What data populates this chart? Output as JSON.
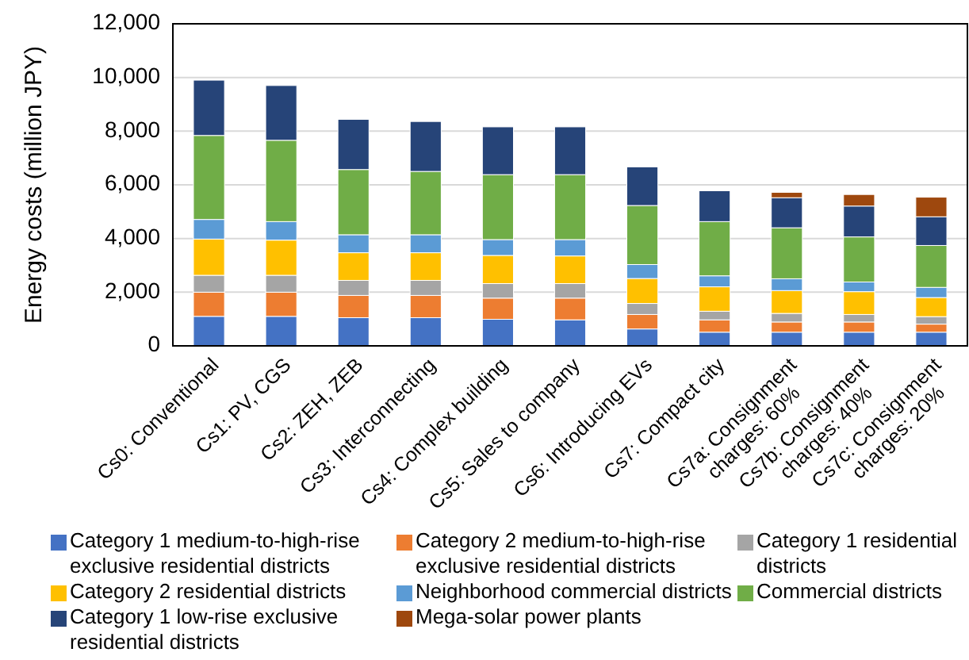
{
  "chart_data": {
    "type": "bar",
    "stacked": true,
    "ylabel": "Energy costs (million JPY)",
    "categories": [
      "Cs0: Conventional",
      "Cs1: PV, CGS",
      "Cs2: ZEH, ZEB",
      "Cs3: Interconnecting",
      "Cs4: Complex building",
      "Cs5: Sales to company",
      "Cs6: Introducing EVs",
      "Cs7: Compact city",
      "Cs7a: Consignment\ncharges: 60%",
      "Cs7b: Consignment\ncharges: 40%",
      "Cs7c: Consignment\ncharges: 20%"
    ],
    "series": [
      {
        "name": "Category 1 medium-to-high-rise exclusive residential districts",
        "color": "#4472c4",
        "values": [
          1100,
          1100,
          1050,
          1050,
          990,
          970,
          630,
          510,
          510,
          510,
          510
        ]
      },
      {
        "name": "Category 2 medium-to-high-rise exclusive residential districts",
        "color": "#ed7d31",
        "values": [
          900,
          900,
          830,
          830,
          790,
          810,
          540,
          460,
          380,
          380,
          300
        ]
      },
      {
        "name": "Category 1 residential districts",
        "color": "#a5a5a5",
        "values": [
          630,
          630,
          560,
          560,
          540,
          540,
          410,
          320,
          320,
          280,
          280
        ]
      },
      {
        "name": "Category 2 residential districts",
        "color": "#ffc000",
        "values": [
          1350,
          1310,
          1030,
          1030,
          1050,
          1030,
          930,
          910,
          850,
          850,
          710
        ]
      },
      {
        "name": "Neighborhood commercial districts",
        "color": "#5b9bd5",
        "values": [
          730,
          690,
          670,
          670,
          590,
          610,
          520,
          410,
          440,
          360,
          380
        ]
      },
      {
        "name": "Commercial districts",
        "color": "#70ad47",
        "values": [
          3130,
          3030,
          2430,
          2360,
          2420,
          2420,
          2200,
          2020,
          1900,
          1680,
          1560
        ]
      },
      {
        "name": "Category 1 low-rise exclusive residential districts",
        "color": "#264478",
        "values": [
          2060,
          2040,
          1870,
          1860,
          1780,
          1780,
          1440,
          1150,
          1120,
          1150,
          1070
        ]
      },
      {
        "name": "Mega-solar power plants",
        "color": "#9e480e",
        "values": [
          0,
          0,
          0,
          0,
          0,
          0,
          0,
          0,
          200,
          430,
          730
        ]
      }
    ],
    "ylim": [
      0,
      12000
    ],
    "yticks": [
      {
        "value": 0,
        "label": "0"
      },
      {
        "value": 2000,
        "label": "2,000"
      },
      {
        "value": 4000,
        "label": "4,000"
      },
      {
        "value": 6000,
        "label": "6,000"
      },
      {
        "value": 8000,
        "label": "8,000"
      },
      {
        "value": 10000,
        "label": "10,000"
      },
      {
        "value": 12000,
        "label": "12,000"
      }
    ],
    "grid": "y",
    "legend": "bottom"
  }
}
